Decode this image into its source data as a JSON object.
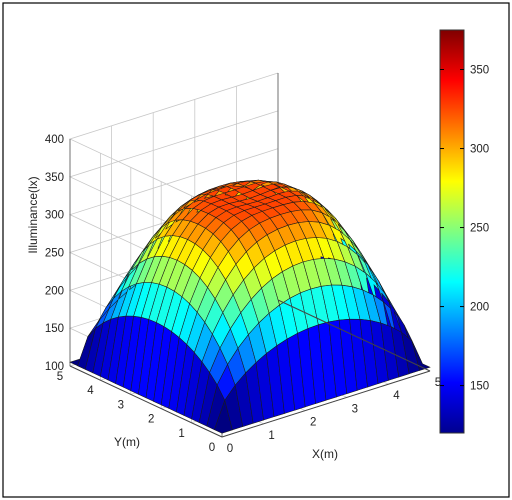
{
  "chart_data": {
    "type": "surface3d",
    "title": "",
    "xlabel": "X(m)",
    "ylabel": "Y(m)",
    "zlabel": "Illuminance(lx)",
    "x_range": [
      0,
      5
    ],
    "y_range": [
      0,
      5
    ],
    "z_range": [
      100,
      400
    ],
    "x_ticks": [
      "0",
      "1",
      "2",
      "3",
      "4",
      "5"
    ],
    "y_ticks": [
      "0",
      "1",
      "2",
      "3",
      "4",
      "5"
    ],
    "z_ticks": [
      "100",
      "150",
      "200",
      "250",
      "300",
      "350",
      "400"
    ],
    "colorbar": {
      "range": [
        120,
        375
      ],
      "ticks": [
        "150",
        "200",
        "250",
        "300",
        "350"
      ],
      "colormap": "jet"
    },
    "grid": true,
    "surface": {
      "grid_n": 21,
      "center_value": 325,
      "ring_peak_value": 370,
      "edge_center_value": 125,
      "corner_value": 105
    }
  }
}
